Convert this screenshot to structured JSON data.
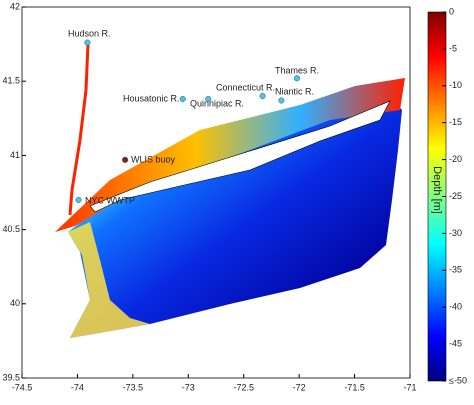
{
  "chart_data": {
    "type": "map",
    "xlim": [
      -74.5,
      -71
    ],
    "xticks": [
      -74.5,
      -74,
      -73.5,
      -73,
      -72.5,
      -72,
      -71.5,
      -71
    ],
    "ylim": [
      39.5,
      42
    ],
    "yticks": [
      39.5,
      40,
      40.5,
      41,
      41.5,
      42
    ],
    "points": [
      {
        "name": "Hudson R.",
        "x": -73.91,
        "y": 41.76,
        "color": "#40c8f0"
      },
      {
        "name": "Housatonic R.",
        "x": -73.05,
        "y": 41.38,
        "color": "#40c8f0"
      },
      {
        "name": "Quinnipiac R.",
        "x": -72.82,
        "y": 41.38,
        "color": "#40c8f0"
      },
      {
        "name": "Connecticut R.",
        "x": -72.33,
        "y": 41.4,
        "color": "#40c8f0"
      },
      {
        "name": "Niantic R.",
        "x": -72.16,
        "y": 41.37,
        "color": "#40c8f0"
      },
      {
        "name": "Thames R.",
        "x": -72.02,
        "y": 41.52,
        "color": "#40c8f0"
      },
      {
        "name": "WLIS buoy",
        "x": -73.57,
        "y": 40.97,
        "color": "#802020"
      },
      {
        "name": "NYC WWTP",
        "x": -73.99,
        "y": 40.7,
        "color": "#40c8f0"
      }
    ],
    "colorbar": {
      "label": "Depth [m]",
      "lim": [
        -50,
        0
      ],
      "ticks": [
        0,
        -5,
        -10,
        -15,
        -20,
        -25,
        -30,
        -35,
        -40,
        -45,
        {
          "value": -50,
          "label": "≤-50"
        }
      ]
    }
  }
}
